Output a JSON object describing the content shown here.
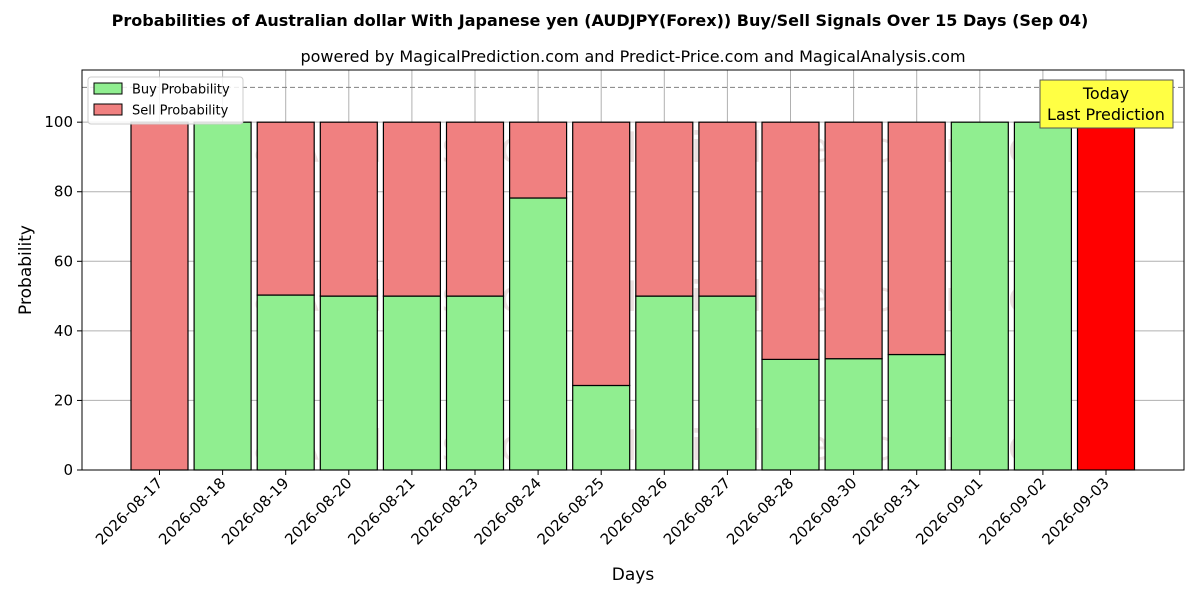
{
  "chart_data": {
    "type": "bar",
    "stacked": true,
    "title": "Probabilities of Australian dollar With Japanese yen (AUDJPY(Forex)) Buy/Sell Signals Over 15 Days (Sep 04)",
    "subtitle": "powered by MagicalPrediction.com and Predict-Price.com and MagicalAnalysis.com",
    "xlabel": "Days",
    "ylabel": "Probability",
    "ylim": [
      0,
      115
    ],
    "yticks": [
      0,
      20,
      40,
      60,
      80,
      100
    ],
    "grid": true,
    "legend_position": "top-left",
    "reference_line": 110,
    "categories": [
      "2026-08-17",
      "2026-08-18",
      "2026-08-19",
      "2026-08-20",
      "2026-08-21",
      "2026-08-23",
      "2026-08-24",
      "2026-08-25",
      "2026-08-26",
      "2026-08-27",
      "2026-08-28",
      "2026-08-30",
      "2026-08-31",
      "2026-09-01",
      "2026-09-02",
      "2026-09-03"
    ],
    "series": [
      {
        "name": "Buy Probability",
        "color": "#90ee90",
        "values": [
          0,
          100,
          50.3,
          50,
          50,
          50,
          78.2,
          24.3,
          50,
          50,
          31.8,
          32,
          33.2,
          100,
          100,
          0
        ]
      },
      {
        "name": "Sell Probability",
        "color": "#f08080",
        "values": [
          100,
          0,
          49.7,
          50,
          50,
          50,
          21.8,
          75.7,
          50,
          50,
          68.2,
          68,
          66.8,
          0,
          0,
          100
        ]
      }
    ],
    "highlight": {
      "index": 15,
      "color": "#ff0000"
    },
    "annotation": {
      "lines": [
        "Today",
        "Last Prediction"
      ],
      "background": "#ffff44"
    },
    "watermarks": [
      "MagicalAnalysis.com",
      "MagicalPrediction.com"
    ]
  }
}
